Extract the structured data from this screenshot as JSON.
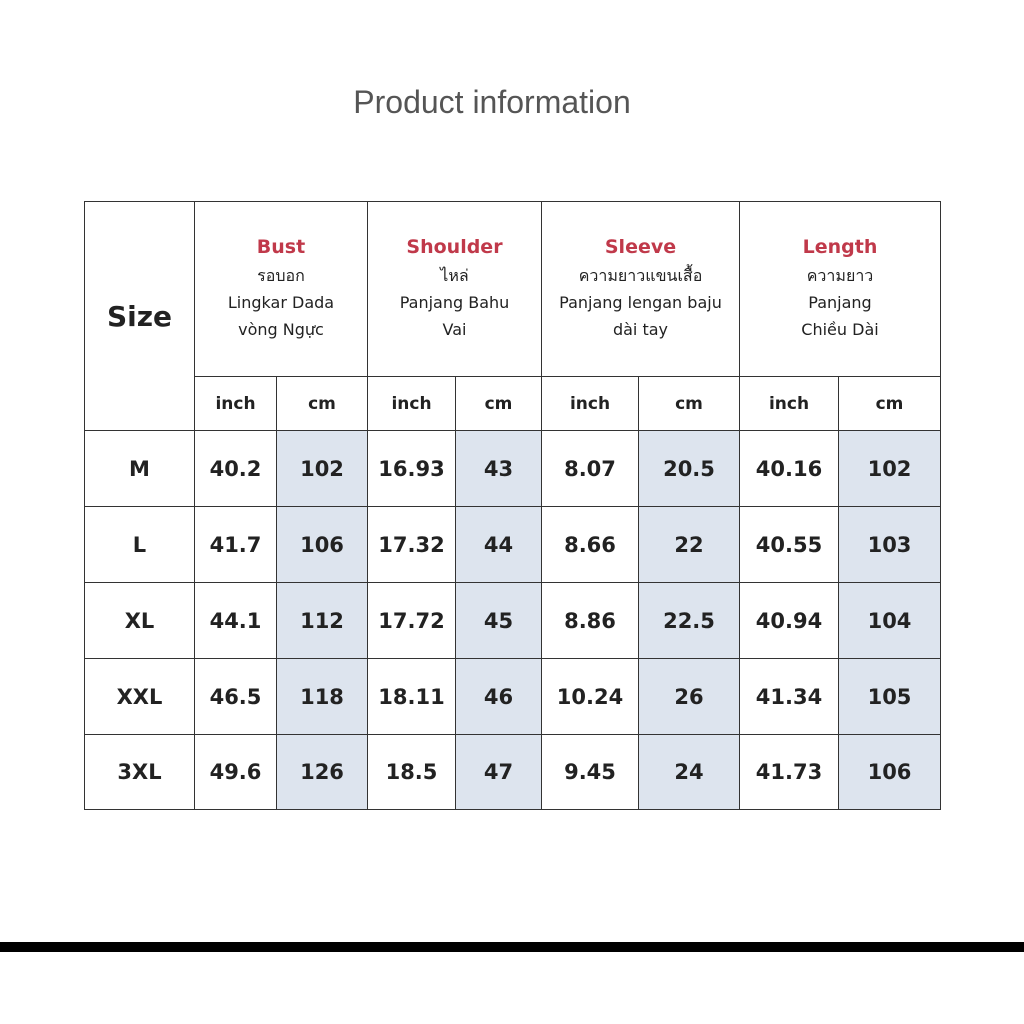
{
  "title": "Product information",
  "table": {
    "size_header": "Size",
    "groups": [
      {
        "name": "Bust",
        "lines": [
          "รอบอก",
          "Lingkar Dada",
          "vòng Ngực"
        ],
        "units": [
          "inch",
          "cm"
        ]
      },
      {
        "name": "Shoulder",
        "lines": [
          "ไหล่",
          "Panjang Bahu",
          "Vai"
        ],
        "units": [
          "inch",
          "cm"
        ]
      },
      {
        "name": "Sleeve",
        "lines": [
          "ความยาวแขนเสื้อ",
          "Panjang lengan baju",
          "dài tay"
        ],
        "units": [
          "inch",
          "cm"
        ]
      },
      {
        "name": "Length",
        "lines": [
          "ความยาว",
          "Panjang",
          "Chiều Dài"
        ],
        "units": [
          "inch",
          "cm"
        ]
      }
    ],
    "rows": [
      [
        "M",
        "40.2",
        "102",
        "16.93",
        "43",
        "8.07",
        "20.5",
        "40.16",
        "102"
      ],
      [
        "L",
        "41.7",
        "106",
        "17.32",
        "44",
        "8.66",
        "22",
        "40.55",
        "103"
      ],
      [
        "XL",
        "44.1",
        "112",
        "17.72",
        "45",
        "8.86",
        "22.5",
        "40.94",
        "104"
      ],
      [
        "XXL",
        "46.5",
        "118",
        "18.11",
        "46",
        "10.24",
        "26",
        "41.34",
        "105"
      ],
      [
        "3XL",
        "49.6",
        "126",
        "18.5",
        "47",
        "9.45",
        "24",
        "41.73",
        "106"
      ]
    ]
  }
}
